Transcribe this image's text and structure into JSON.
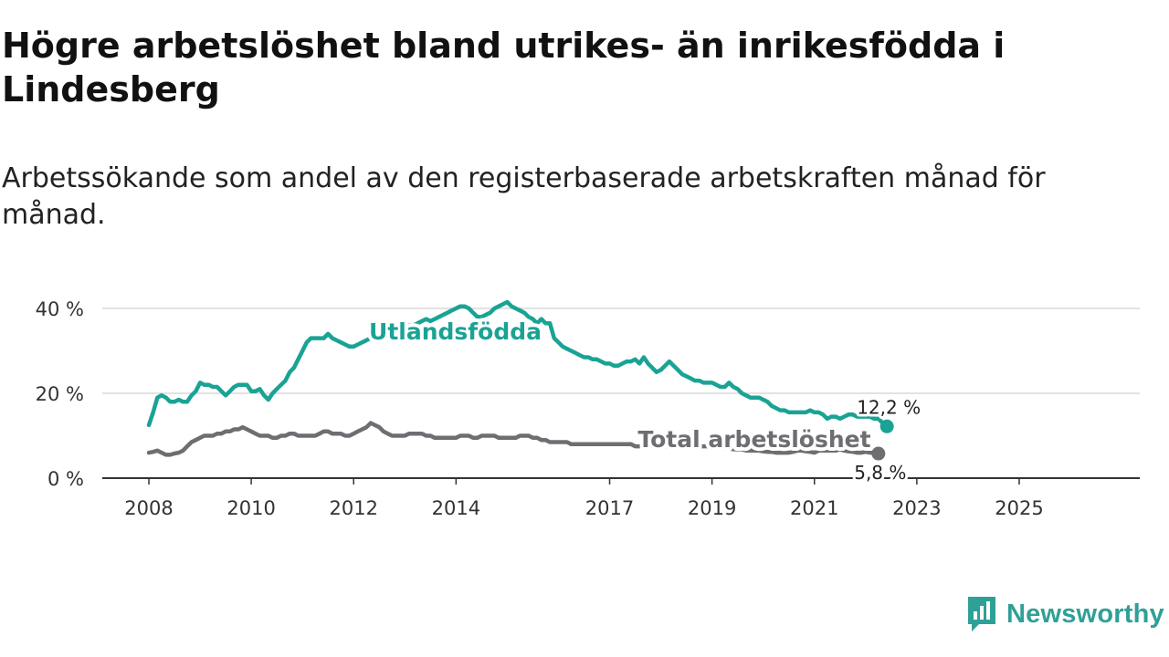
{
  "title": "Högre arbetslöshet bland utrikes- än inrikesfödda i Lindesberg",
  "subtitle": "Arbetssökande som andel av den registerbaserade arbetskraften månad för månad.",
  "brand": {
    "name": "Newsworthy",
    "color": "#2fa097",
    "icon": "newsworthy-logo-icon"
  },
  "chart_data": {
    "type": "line",
    "x_start": 2008.0,
    "x_step_months": 1,
    "x_range": [
      2007.92,
      2026.6
    ],
    "ylim": [
      0,
      40
    ],
    "y_ticks": [
      {
        "value": 0,
        "label": "0 %"
      },
      {
        "value": 20,
        "label": "20 %"
      },
      {
        "value": 40,
        "label": "40 %"
      }
    ],
    "x_ticks": [
      {
        "value": 2008,
        "label": "2008"
      },
      {
        "value": 2010,
        "label": "2010"
      },
      {
        "value": 2012,
        "label": "2012"
      },
      {
        "value": 2014,
        "label": "2014"
      },
      {
        "value": 2017,
        "label": "2017"
      },
      {
        "value": 2019,
        "label": "2019"
      },
      {
        "value": 2021,
        "label": "2021"
      },
      {
        "value": 2023,
        "label": "2023"
      },
      {
        "value": 2025,
        "label": "2025"
      }
    ],
    "grid": true,
    "series": [
      {
        "name": "Utlandsfödda",
        "color": "#1aa395",
        "end_label": "12,2 %",
        "series_label_x": 2012.3,
        "values": [
          12.5,
          15.5,
          19,
          19.5,
          19,
          18,
          18,
          18.5,
          18,
          18,
          19.5,
          20.5,
          22.5,
          22,
          22,
          21.5,
          21.5,
          20.5,
          19.5,
          20.5,
          21.5,
          22,
          22,
          22,
          20.5,
          20.5,
          21,
          19.5,
          18.5,
          20,
          21,
          22,
          23,
          25,
          26,
          28,
          30,
          32,
          33,
          33,
          33,
          33,
          34,
          33,
          32.5,
          32,
          31.5,
          31,
          31,
          31.5,
          32,
          32.5,
          33,
          33.5,
          34,
          34.5,
          34,
          34.5,
          35,
          35,
          35.5,
          36,
          36,
          36.5,
          37,
          37.5,
          37,
          37.5,
          38,
          38.5,
          39,
          39.5,
          40,
          40.5,
          40.5,
          40,
          39,
          38,
          38,
          38.5,
          39,
          40,
          40.5,
          41,
          41.5,
          40.5,
          40,
          39.5,
          39,
          38,
          37.5,
          36.5,
          37.5,
          36.5,
          36.5,
          33,
          32,
          31,
          30.5,
          30,
          29.5,
          29,
          28.5,
          28.5,
          28,
          28,
          27.5,
          27,
          27,
          26.5,
          26.5,
          27,
          27.5,
          27.5,
          28,
          27,
          28.5,
          27,
          26,
          25,
          25.5,
          26.5,
          27.5,
          26.5,
          25.5,
          24.5,
          24,
          23.5,
          23,
          23,
          22.5,
          22.5,
          22.5,
          22,
          21.5,
          21.5,
          22.5,
          21.5,
          21,
          20,
          19.5,
          19,
          19,
          19,
          18.5,
          18,
          17,
          16.5,
          16,
          16,
          15.5,
          15.5,
          15.5,
          15.5,
          15.5,
          16,
          15.5,
          15.5,
          15,
          14,
          14.5,
          14.5,
          14,
          14.5,
          15,
          15,
          14.5,
          14.5,
          14.5,
          14.5,
          14,
          14,
          13,
          12.2
        ]
      },
      {
        "name": "Total arbetslöshet",
        "color": "#6d6e72",
        "end_label": "5,8 %",
        "series_label_x": 2017.55,
        "values": [
          6,
          6.2,
          6.5,
          6,
          5.5,
          5.5,
          5.8,
          6,
          6.5,
          7.5,
          8.5,
          9,
          9.5,
          10,
          10,
          10,
          10.5,
          10.5,
          11,
          11,
          11.5,
          11.5,
          12,
          11.5,
          11,
          10.5,
          10,
          10,
          10,
          9.5,
          9.5,
          10,
          10,
          10.5,
          10.5,
          10,
          10,
          10,
          10,
          10,
          10.5,
          11,
          11,
          10.5,
          10.5,
          10.5,
          10,
          10,
          10.5,
          11,
          11.5,
          12,
          13,
          12.5,
          12,
          11,
          10.5,
          10,
          10,
          10,
          10,
          10.5,
          10.5,
          10.5,
          10.5,
          10,
          10,
          9.5,
          9.5,
          9.5,
          9.5,
          9.5,
          9.5,
          10,
          10,
          10,
          9.5,
          9.5,
          10,
          10,
          10,
          10,
          9.5,
          9.5,
          9.5,
          9.5,
          9.5,
          10,
          10,
          10,
          9.5,
          9.5,
          9,
          9,
          8.5,
          8.5,
          8.5,
          8.5,
          8.5,
          8,
          8,
          8,
          8,
          8,
          8,
          8,
          8,
          8,
          8,
          8,
          8,
          8,
          8,
          8,
          7.5,
          7.5,
          7.5,
          7.5,
          7.5,
          7.5,
          7.5,
          7.5,
          7.5,
          7.5,
          7.5,
          7.5,
          7.5,
          7.5,
          7.5,
          7.5,
          7.5,
          7.5,
          7,
          7,
          7,
          7,
          7,
          6.8,
          6.8,
          6.8,
          6.5,
          6.5,
          6.5,
          6.5,
          6.3,
          6.2,
          6.2,
          6,
          6,
          6,
          6,
          6.2,
          6.5,
          6.5,
          6.3,
          6.2,
          6,
          6.5,
          6.5,
          6.5,
          6.5,
          6.5,
          6.8,
          6.5,
          6.3,
          6.2,
          6,
          6,
          6.2,
          6,
          6,
          5.8
        ]
      }
    ]
  }
}
